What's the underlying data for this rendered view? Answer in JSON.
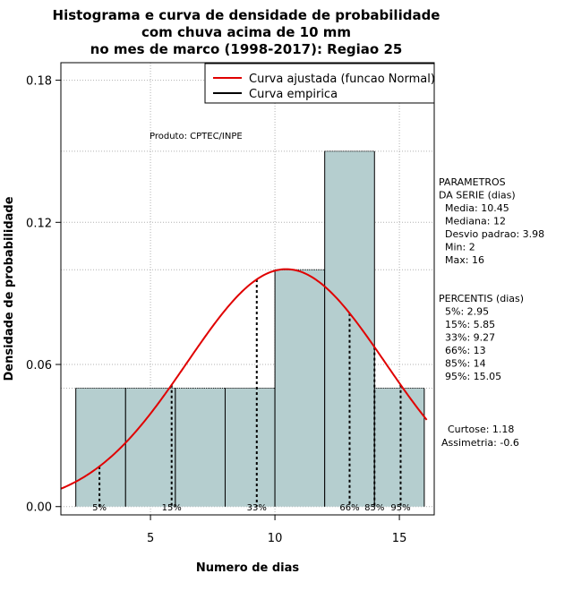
{
  "chart_data": {
    "type": "bar",
    "title_lines": [
      "Histograma e curva de densidade de probabilidade",
      "com chuva acima de 10 mm",
      "no mes de marco (1998-2017): Regiao 25"
    ],
    "xlabel": "Numero de dias",
    "ylabel": "Densidade de probabilidade",
    "xlim": [
      1.4,
      16.4
    ],
    "ylim": [
      -0.0035,
      0.1874
    ],
    "x_ticks": [
      5,
      10,
      15
    ],
    "y_ticks": [
      0.0,
      0.06,
      0.12,
      0.18
    ],
    "y_tick_labels": [
      "0.00",
      "0.06",
      "0.12",
      "0.18"
    ],
    "grid": true,
    "bar_color": "#b5cecf",
    "bins": [
      {
        "x0": 2,
        "x1": 4,
        "density": 0.05
      },
      {
        "x0": 4,
        "x1": 6,
        "density": 0.05
      },
      {
        "x0": 6,
        "x1": 8,
        "density": 0.05
      },
      {
        "x0": 8,
        "x1": 10,
        "density": 0.05
      },
      {
        "x0": 10,
        "x1": 12,
        "density": 0.1
      },
      {
        "x0": 12,
        "x1": 14,
        "density": 0.15
      },
      {
        "x0": 14,
        "x1": 16,
        "density": 0.05
      }
    ],
    "normal_curve": {
      "mean": 10.45,
      "sd": 3.98,
      "color": "#e00000"
    },
    "percentiles": [
      {
        "label": "5%",
        "x": 2.95
      },
      {
        "label": "15%",
        "x": 5.85
      },
      {
        "label": "33%",
        "x": 9.27
      },
      {
        "label": "66%",
        "x": 13
      },
      {
        "label": "85%",
        "x": 14
      },
      {
        "label": "95%",
        "x": 15.05
      }
    ],
    "legend": {
      "position": "top-right",
      "entries": [
        {
          "label": "Curva ajustada (funcao Normal)",
          "color": "#e00000"
        },
        {
          "label": "Curva empirica",
          "color": "#000000"
        }
      ]
    },
    "annotation": "Produto: CPTEC/INPE",
    "parametros": {
      "heading": [
        "PARAMETROS",
        "DA SERIE (dias)"
      ],
      "lines": [
        "Media: 10.45",
        "Mediana: 12",
        "Desvio padrao: 3.98",
        "Min: 2",
        "Max: 16"
      ]
    },
    "percentis": {
      "heading": "PERCENTIS (dias)",
      "lines": [
        "5%: 2.95",
        "15%: 5.85",
        "33%: 9.27",
        "66%: 13",
        "85%: 14",
        "95%: 15.05"
      ]
    },
    "shape": {
      "lines": [
        "Curtose: 1.18",
        "Assimetria: -0.6"
      ]
    }
  }
}
